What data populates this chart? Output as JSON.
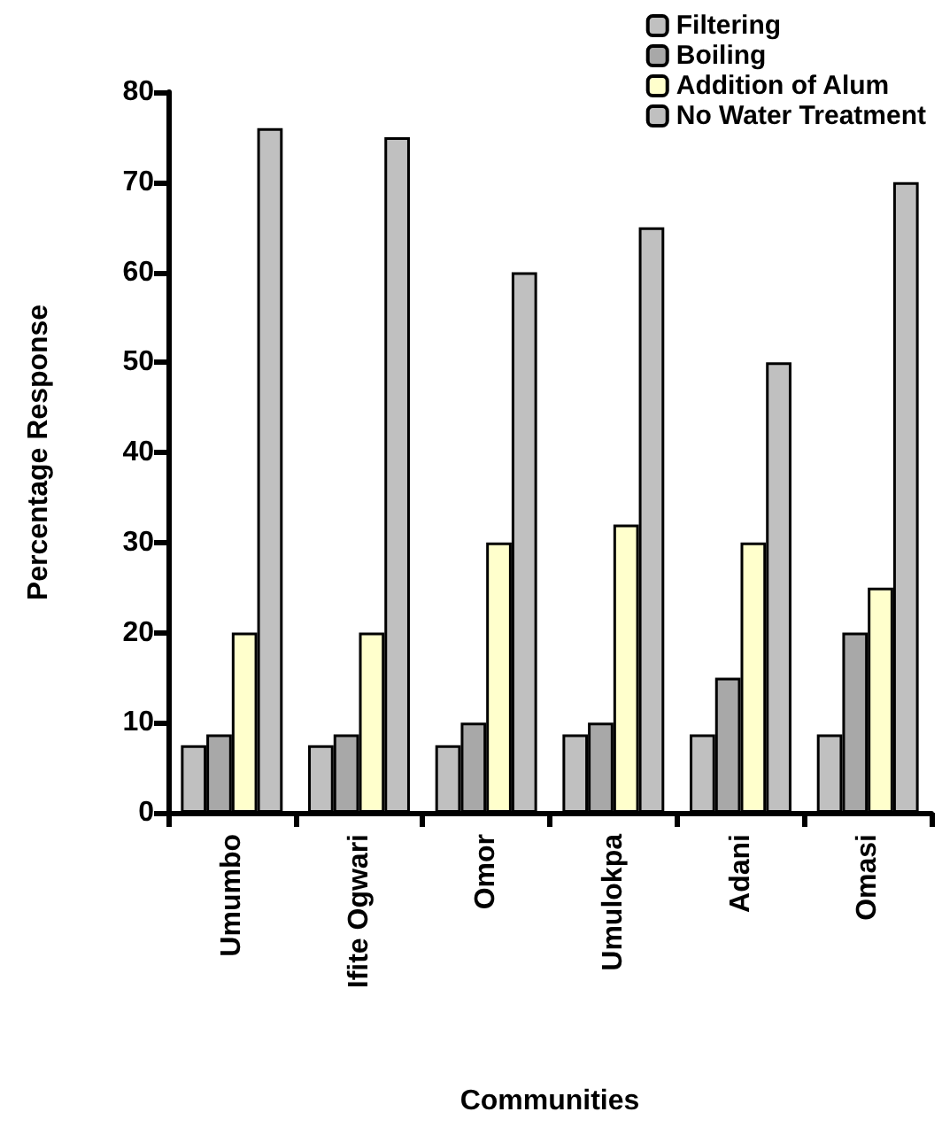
{
  "chart_data": {
    "type": "bar",
    "xlabel": "Communities",
    "ylabel": "Percentage Response",
    "categories": [
      "Umumbo",
      "Ifite Ogwari",
      "Omor",
      "Umulokpa",
      "Adani",
      "Omasi"
    ],
    "series": [
      {
        "name": "Filtering",
        "color": "#c0c0c0",
        "values": [
          7.5,
          7.5,
          7.5,
          8.7,
          8.7,
          8.7
        ]
      },
      {
        "name": "Boiling",
        "color": "#a8a8a8",
        "values": [
          8.7,
          8.7,
          10,
          10,
          15,
          20
        ]
      },
      {
        "name": "Addition of Alum",
        "color": "#ffffcc",
        "values": [
          20,
          20,
          30,
          32,
          30,
          25
        ]
      },
      {
        "name": "No Water Treatment",
        "color": "#c0c0c0",
        "values": [
          76,
          75,
          60,
          65,
          50,
          70
        ]
      }
    ],
    "ylim": [
      0,
      80
    ],
    "yticks": [
      0,
      10,
      20,
      30,
      40,
      50,
      60,
      70,
      80
    ],
    "grid": false,
    "legend": "top right"
  }
}
